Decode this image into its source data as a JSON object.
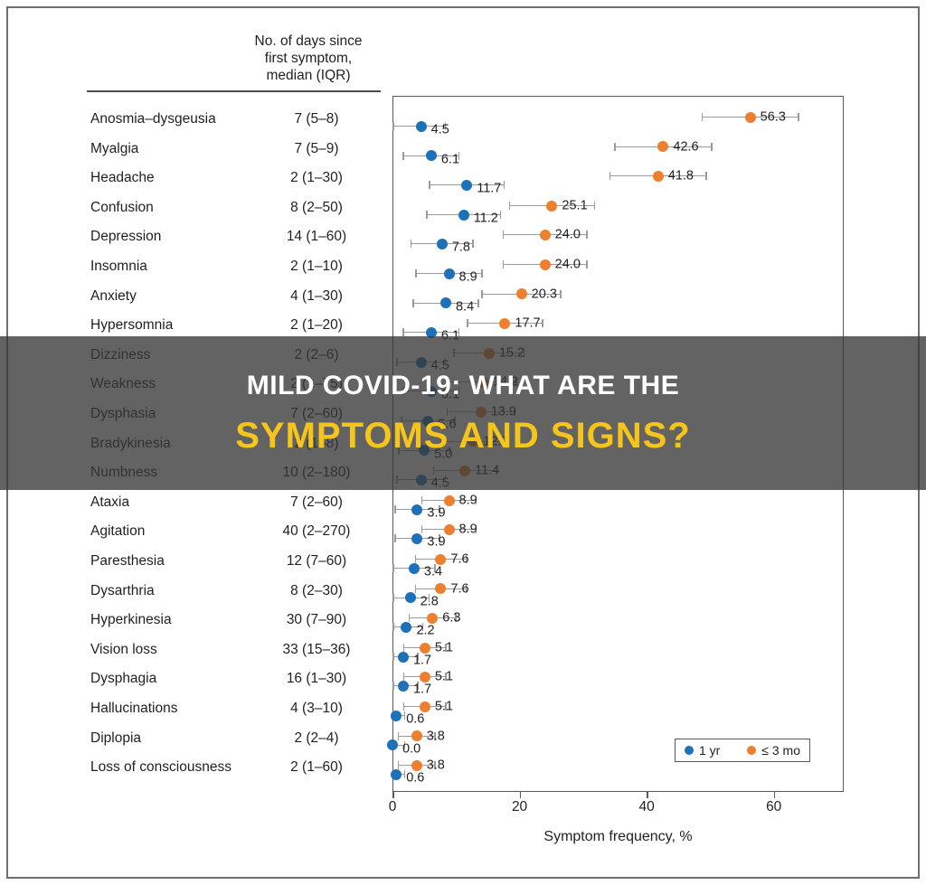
{
  "banner": {
    "line1": "MILD COVID-19: WHAT ARE THE",
    "line2": "SYMPTOMS AND SIGNS?",
    "line2_color": "#f6c51b"
  },
  "table": {
    "days_header": "No. of days since\nfirst symptom,\nmedian (IQR)"
  },
  "chart_data": {
    "type": "scatter",
    "subtype": "dot-plot-with-error-bars",
    "xlabel": "Symptom frequency, %",
    "xlim": [
      0,
      71
    ],
    "xticks": [
      0,
      20,
      40,
      60
    ],
    "grid": false,
    "legend_position": "bottom-right-inside",
    "colors": {
      "yr1": "#1d71b8",
      "mo3": "#ee7f2e",
      "errorbar": "#9b9b9b"
    },
    "legend": [
      {
        "name": "1 yr",
        "color": "#1d71b8"
      },
      {
        "name": "≤ 3 mo",
        "color": "#ee7f2e"
      }
    ],
    "rows": [
      {
        "symptom": "Anosmia–dysgeusia",
        "days_median_iqr": "7 (5–8)",
        "yr1": 4.5,
        "yr1_ci": [
          0.0,
          8.4
        ],
        "mo3": 56.3,
        "mo3_ci": [
          48.6,
          64.0
        ]
      },
      {
        "symptom": "Myalgia",
        "days_median_iqr": "7 (5–9)",
        "yr1": 6.1,
        "yr1_ci": [
          1.6,
          10.6
        ],
        "mo3": 42.6,
        "mo3_ci": [
          34.9,
          50.3
        ]
      },
      {
        "symptom": "Headache",
        "days_median_iqr": "2 (1–30)",
        "yr1": 11.7,
        "yr1_ci": [
          5.7,
          17.7
        ],
        "mo3": 41.8,
        "mo3_ci": [
          34.1,
          49.5
        ]
      },
      {
        "symptom": "Confusion",
        "days_median_iqr": "8 (2–50)",
        "yr1": 11.2,
        "yr1_ci": [
          5.3,
          17.1
        ],
        "mo3": 25.1,
        "mo3_ci": [
          18.3,
          31.9
        ]
      },
      {
        "symptom": "Depression",
        "days_median_iqr": "14 (1–60)",
        "yr1": 7.8,
        "yr1_ci": [
          2.8,
          12.8
        ],
        "mo3": 24.0,
        "mo3_ci": [
          17.3,
          30.7
        ]
      },
      {
        "symptom": "Insomnia",
        "days_median_iqr": "2 (1–10)",
        "yr1": 8.9,
        "yr1_ci": [
          3.6,
          14.2
        ],
        "mo3": 24.0,
        "mo3_ci": [
          17.3,
          30.7
        ]
      },
      {
        "symptom": "Anxiety",
        "days_median_iqr": "4 (1–30)",
        "yr1": 8.4,
        "yr1_ci": [
          3.2,
          13.6
        ],
        "mo3": 20.3,
        "mo3_ci": [
          14.0,
          26.6
        ]
      },
      {
        "symptom": "Hypersomnia",
        "days_median_iqr": "2 (1–20)",
        "yr1": 6.1,
        "yr1_ci": [
          1.6,
          10.6
        ],
        "mo3": 17.7,
        "mo3_ci": [
          11.7,
          23.7
        ]
      },
      {
        "symptom": "Dizziness",
        "days_median_iqr": "2 (2–6)",
        "yr1": 4.5,
        "yr1_ci": [
          0.6,
          8.4
        ],
        "mo3": 15.2,
        "mo3_ci": [
          9.6,
          20.8
        ]
      },
      {
        "symptom": "Weakness",
        "days_median_iqr": "2 (1–75)",
        "yr1": 6.1,
        "yr1_ci": [
          1.6,
          10.6
        ],
        "mo3": 14.2,
        "mo3_ci": [
          8.8,
          19.6
        ]
      },
      {
        "symptom": "Dysphasia",
        "days_median_iqr": "7 (2–60)",
        "yr1": 5.6,
        "yr1_ci": [
          1.3,
          9.9
        ],
        "mo3": 13.9,
        "mo3_ci": [
          8.5,
          19.3
        ]
      },
      {
        "symptom": "Bradykinesia",
        "days_median_iqr": "2 (1–8)",
        "yr1": 5.0,
        "yr1_ci": [
          0.9,
          9.1
        ],
        "mo3": 12.7,
        "mo3_ci": [
          7.5,
          17.9
        ]
      },
      {
        "symptom": "Numbness",
        "days_median_iqr": "10 (2–180)",
        "yr1": 4.5,
        "yr1_ci": [
          0.6,
          8.4
        ],
        "mo3": 11.4,
        "mo3_ci": [
          6.4,
          16.4
        ]
      },
      {
        "symptom": "Ataxia",
        "days_median_iqr": "7 (2–60)",
        "yr1": 3.9,
        "yr1_ci": [
          0.3,
          7.5
        ],
        "mo3": 8.9,
        "mo3_ci": [
          4.5,
          13.3
        ]
      },
      {
        "symptom": "Agitation",
        "days_median_iqr": "40 (2–270)",
        "yr1": 3.9,
        "yr1_ci": [
          0.3,
          7.5
        ],
        "mo3": 8.9,
        "mo3_ci": [
          4.5,
          13.3
        ]
      },
      {
        "symptom": "Paresthesia",
        "days_median_iqr": "12 (7–60)",
        "yr1": 3.4,
        "yr1_ci": [
          0.0,
          6.8
        ],
        "mo3": 7.6,
        "mo3_ci": [
          3.5,
          11.7
        ]
      },
      {
        "symptom": "Dysarthria",
        "days_median_iqr": "8 (2–30)",
        "yr1": 2.8,
        "yr1_ci": [
          0.0,
          5.9
        ],
        "mo3": 7.6,
        "mo3_ci": [
          3.5,
          11.7
        ]
      },
      {
        "symptom": "Hyperkinesia",
        "days_median_iqr": "30 (7–90)",
        "yr1": 2.2,
        "yr1_ci": [
          0.0,
          4.9
        ],
        "mo3": 6.3,
        "mo3_ci": [
          2.5,
          10.1
        ]
      },
      {
        "symptom": "Vision loss",
        "days_median_iqr": "33 (15–36)",
        "yr1": 1.7,
        "yr1_ci": [
          0.0,
          4.1
        ],
        "mo3": 5.1,
        "mo3_ci": [
          1.7,
          8.5
        ]
      },
      {
        "symptom": "Dysphagia",
        "days_median_iqr": "16 (1–30)",
        "yr1": 1.7,
        "yr1_ci": [
          0.0,
          4.1
        ],
        "mo3": 5.1,
        "mo3_ci": [
          1.7,
          8.5
        ]
      },
      {
        "symptom": "Hallucinations",
        "days_median_iqr": "4 (3–10)",
        "yr1": 0.6,
        "yr1_ci": [
          0.0,
          2.0
        ],
        "mo3": 5.1,
        "mo3_ci": [
          1.7,
          8.5
        ]
      },
      {
        "symptom": "Diplopia",
        "days_median_iqr": "2 (2–4)",
        "yr1": 0.0,
        "yr1_ci": [
          0.0,
          2.0
        ],
        "mo3": 3.8,
        "mo3_ci": [
          0.8,
          6.8
        ]
      },
      {
        "symptom": "Loss of consciousness",
        "days_median_iqr": "2 (1–60)",
        "yr1": 0.6,
        "yr1_ci": [
          0.0,
          2.0
        ],
        "mo3": 3.8,
        "mo3_ci": [
          0.8,
          6.8
        ]
      }
    ]
  }
}
